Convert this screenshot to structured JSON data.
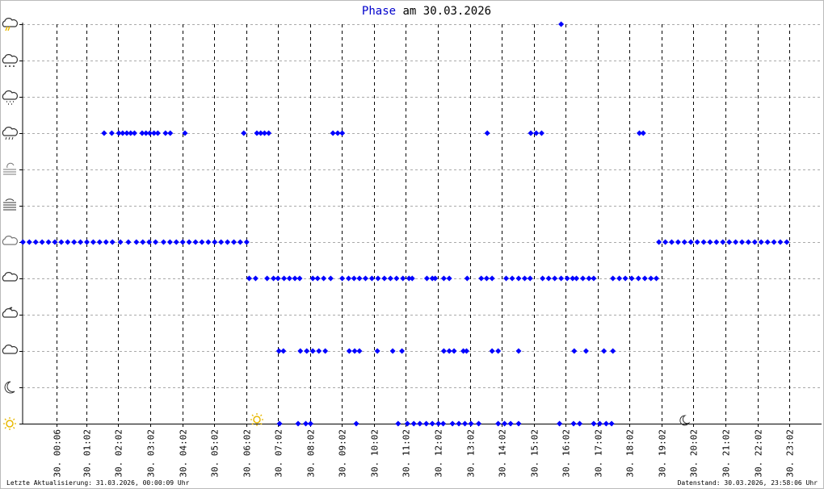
{
  "chart_data": {
    "type": "scatter",
    "title_series": "Phase",
    "title": "am 30.03.2026",
    "footer_left": "Letzte Aktualisierung: 31.03.2026, 00:00:09 Uhr",
    "footer_right": "Datenstand: 30.03.2026, 23:58:06 Uhr",
    "color": "#0000ff",
    "xlim": [
      -0.96,
      24.04
    ],
    "xticks": [
      {
        "value": 0.1,
        "label": "30. 00:06"
      },
      {
        "value": 1.033,
        "label": "30. 01:02"
      },
      {
        "value": 2.033,
        "label": "30. 02:02"
      },
      {
        "value": 3.033,
        "label": "30. 03:02"
      },
      {
        "value": 4.033,
        "label": "30. 04:02"
      },
      {
        "value": 5.033,
        "label": "30. 05:02"
      },
      {
        "value": 6.033,
        "label": "30. 06:02"
      },
      {
        "value": 7.033,
        "label": "30. 07:02"
      },
      {
        "value": 8.033,
        "label": "30. 08:02"
      },
      {
        "value": 9.033,
        "label": "30. 09:02"
      },
      {
        "value": 10.033,
        "label": "30. 10:02"
      },
      {
        "value": 11.033,
        "label": "30. 11:02"
      },
      {
        "value": 12.033,
        "label": "30. 12:02"
      },
      {
        "value": 13.033,
        "label": "30. 13:02"
      },
      {
        "value": 14.033,
        "label": "30. 14:02"
      },
      {
        "value": 15.033,
        "label": "30. 15:02"
      },
      {
        "value": 16.033,
        "label": "30. 16:02"
      },
      {
        "value": 17.033,
        "label": "30. 17:02"
      },
      {
        "value": 18.033,
        "label": "30. 18:02"
      },
      {
        "value": 19.033,
        "label": "30. 19:02"
      },
      {
        "value": 20.033,
        "label": "30. 20:02"
      },
      {
        "value": 21.033,
        "label": "30. 21:02"
      },
      {
        "value": 22.033,
        "label": "30. 22:02"
      },
      {
        "value": 23.033,
        "label": "30. 23:02"
      }
    ],
    "ylim": [
      0,
      11
    ],
    "yticks": [
      0,
      1,
      2,
      3,
      4,
      5,
      6,
      7,
      8,
      9,
      10,
      11
    ],
    "grid": true,
    "series": [
      {
        "level": 5,
        "x": [
          -0.95,
          -0.75,
          -0.55,
          -0.35,
          -0.15,
          0.05,
          0.25,
          0.45,
          0.65,
          0.85,
          1.05,
          1.25,
          1.45,
          1.65,
          1.85,
          2.1,
          2.35,
          2.6,
          2.8,
          3.0,
          3.2,
          3.45,
          3.65,
          3.85,
          4.05,
          4.25,
          4.45,
          4.65,
          4.85,
          5.05,
          5.25,
          5.45,
          5.65,
          5.85,
          6.05,
          18.95,
          19.15,
          19.35,
          19.55,
          19.75,
          19.95,
          20.15,
          20.35,
          20.55,
          20.75,
          20.95,
          21.15,
          21.35,
          21.55,
          21.75,
          21.95,
          22.15,
          22.35,
          22.55,
          22.75,
          22.95
        ]
      },
      {
        "level": 8,
        "x": [
          1.59,
          1.83,
          2.05,
          2.17,
          2.3,
          2.42,
          2.54,
          2.78,
          2.9,
          3.02,
          3.15,
          3.27,
          3.51,
          3.66,
          4.12,
          5.96,
          6.37,
          6.49,
          6.61,
          6.74,
          8.75,
          8.9,
          9.04,
          13.58,
          14.94,
          15.11,
          15.28,
          18.34,
          18.46
        ]
      },
      {
        "level": 11,
        "x": [
          15.89
        ]
      },
      {
        "level": 4,
        "x": [
          6.13,
          6.33,
          6.69,
          6.89,
          7.03,
          7.22,
          7.39,
          7.56,
          7.71,
          8.12,
          8.27,
          8.46,
          8.68,
          9.04,
          9.24,
          9.41,
          9.58,
          9.77,
          9.97,
          10.16,
          10.36,
          10.55,
          10.74,
          10.94,
          11.13,
          11.23,
          11.69,
          11.86,
          11.95,
          12.22,
          12.39,
          12.95,
          13.39,
          13.56,
          13.73,
          14.17,
          14.36,
          14.56,
          14.75,
          14.92,
          15.31,
          15.5,
          15.69,
          15.89,
          16.08,
          16.25,
          16.37,
          16.57,
          16.76,
          16.91,
          17.51,
          17.71,
          17.9,
          18.1,
          18.31,
          18.51,
          18.7,
          18.87
        ]
      },
      {
        "level": 2,
        "x": [
          7.06,
          7.2,
          7.73,
          7.93,
          8.12,
          8.31,
          8.51,
          9.26,
          9.43,
          9.58,
          10.14,
          10.62,
          10.91,
          12.22,
          12.39,
          12.54,
          12.83,
          12.93,
          13.73,
          13.92,
          14.56,
          16.3,
          16.67,
          17.23,
          17.51
        ]
      },
      {
        "level": 0,
        "x": [
          7.08,
          7.66,
          7.9,
          8.05,
          9.48,
          10.79,
          11.08,
          11.28,
          11.47,
          11.67,
          11.86,
          12.05,
          12.2,
          12.49,
          12.69,
          12.88,
          13.07,
          13.31,
          13.92,
          14.12,
          14.31,
          14.56,
          15.84,
          16.28,
          16.47,
          16.91,
          17.1,
          17.3,
          17.47
        ]
      }
    ]
  }
}
